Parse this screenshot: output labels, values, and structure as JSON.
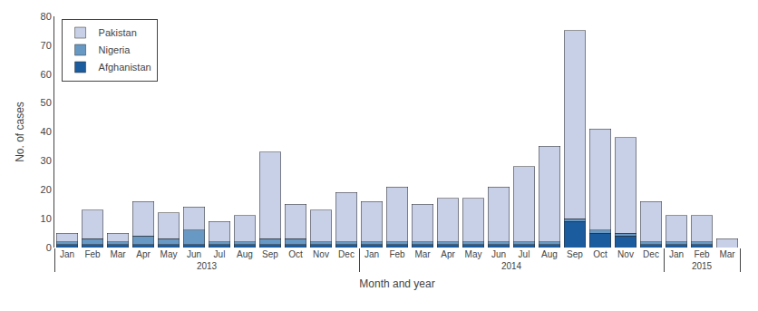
{
  "chart_data": {
    "type": "bar",
    "stacked": true,
    "categories": [
      [
        "2013",
        "Jan"
      ],
      [
        "2013",
        "Feb"
      ],
      [
        "2013",
        "Mar"
      ],
      [
        "2013",
        "Apr"
      ],
      [
        "2013",
        "May"
      ],
      [
        "2013",
        "Jun"
      ],
      [
        "2013",
        "Jul"
      ],
      [
        "2013",
        "Aug"
      ],
      [
        "2013",
        "Sep"
      ],
      [
        "2013",
        "Oct"
      ],
      [
        "2013",
        "Nov"
      ],
      [
        "2013",
        "Dec"
      ],
      [
        "2014",
        "Jan"
      ],
      [
        "2014",
        "Feb"
      ],
      [
        "2014",
        "Mar"
      ],
      [
        "2014",
        "Apr"
      ],
      [
        "2014",
        "May"
      ],
      [
        "2014",
        "Jun"
      ],
      [
        "2014",
        "Jul"
      ],
      [
        "2014",
        "Aug"
      ],
      [
        "2014",
        "Sep"
      ],
      [
        "2014",
        "Oct"
      ],
      [
        "2014",
        "Nov"
      ],
      [
        "2014",
        "Dec"
      ],
      [
        "2015",
        "Jan"
      ],
      [
        "2015",
        "Feb"
      ],
      [
        "2015",
        "Mar"
      ]
    ],
    "series": [
      {
        "name": "Pakistan",
        "color": "#c8d0e8",
        "values": [
          3,
          10,
          3,
          12,
          9,
          8,
          7,
          9,
          30,
          12,
          11,
          17,
          14,
          19,
          13,
          15,
          15,
          19,
          26,
          33,
          65,
          35,
          33,
          14,
          9,
          9,
          3
        ]
      },
      {
        "name": "Nigeria",
        "color": "#6899c4",
        "values": [
          1,
          2,
          1,
          3,
          2,
          5,
          1,
          1,
          2,
          2,
          1,
          1,
          1,
          1,
          1,
          1,
          1,
          1,
          1,
          1,
          1,
          1,
          1,
          1,
          1,
          1,
          0
        ]
      },
      {
        "name": "Afghanistan",
        "color": "#1b5c9e",
        "values": [
          1,
          1,
          1,
          1,
          1,
          1,
          1,
          1,
          1,
          1,
          1,
          1,
          1,
          1,
          1,
          1,
          1,
          1,
          1,
          1,
          9,
          5,
          4,
          1,
          1,
          1,
          0
        ]
      }
    ],
    "xlabel": "Month and year",
    "ylabel": "No. of cases",
    "ylim": [
      0,
      80
    ],
    "yticks": [
      0,
      10,
      20,
      30,
      40,
      50,
      60,
      70,
      80
    ],
    "grid": false,
    "legend": "upper-left"
  }
}
